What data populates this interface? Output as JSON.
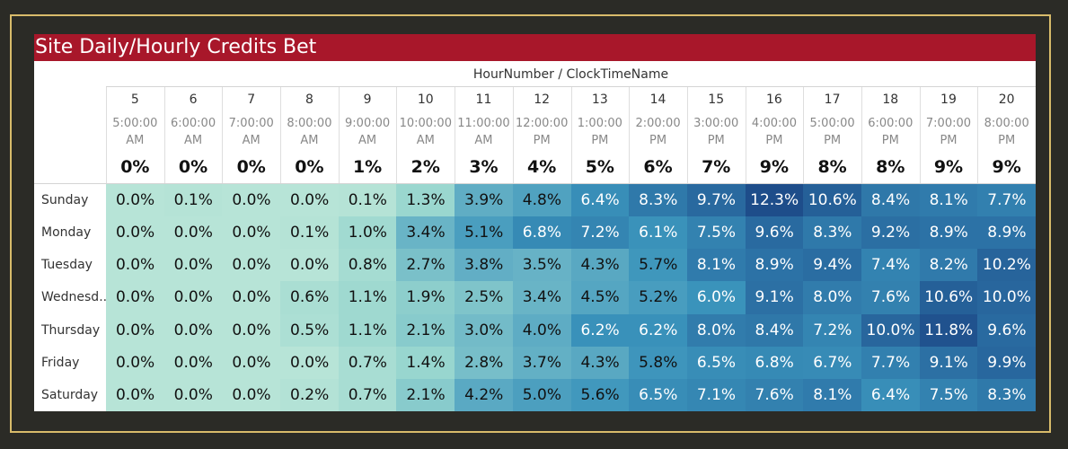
{
  "title": "Site Daily/Hourly Credits Bet",
  "chart_data": {
    "type": "heatmap",
    "title": "Site Daily/Hourly Credits Bet",
    "column_axis_title": "HourNumber / ClockTimeName",
    "hours": [
      "5",
      "6",
      "7",
      "8",
      "9",
      "10",
      "11",
      "12",
      "13",
      "14",
      "15",
      "16",
      "17",
      "18",
      "19",
      "20"
    ],
    "clock_times": [
      [
        "5:00:00",
        "AM"
      ],
      [
        "6:00:00",
        "AM"
      ],
      [
        "7:00:00",
        "AM"
      ],
      [
        "8:00:00",
        "AM"
      ],
      [
        "9:00:00",
        "AM"
      ],
      [
        "10:00:00",
        "AM"
      ],
      [
        "11:00:00",
        "AM"
      ],
      [
        "12:00:00",
        "PM"
      ],
      [
        "1:00:00",
        "PM"
      ],
      [
        "2:00:00",
        "PM"
      ],
      [
        "3:00:00",
        "PM"
      ],
      [
        "4:00:00",
        "PM"
      ],
      [
        "5:00:00",
        "PM"
      ],
      [
        "6:00:00",
        "PM"
      ],
      [
        "7:00:00",
        "PM"
      ],
      [
        "8:00:00",
        "PM"
      ]
    ],
    "column_totals": [
      "0%",
      "0%",
      "0%",
      "0%",
      "1%",
      "2%",
      "3%",
      "4%",
      "5%",
      "6%",
      "7%",
      "9%",
      "8%",
      "8%",
      "9%",
      "9%"
    ],
    "rows": [
      "Sunday",
      "Monday",
      "Tuesday",
      "Wednesd..",
      "Thursday",
      "Friday",
      "Saturday"
    ],
    "values": [
      [
        0.0,
        0.1,
        0.0,
        0.0,
        0.1,
        1.3,
        3.9,
        4.8,
        6.4,
        8.3,
        9.7,
        12.3,
        10.6,
        8.4,
        8.1,
        7.7
      ],
      [
        0.0,
        0.0,
        0.0,
        0.1,
        1.0,
        3.4,
        5.1,
        6.8,
        7.2,
        6.1,
        7.5,
        9.6,
        8.3,
        9.2,
        8.9,
        8.9
      ],
      [
        0.0,
        0.0,
        0.0,
        0.0,
        0.8,
        2.7,
        3.8,
        3.5,
        4.3,
        5.7,
        8.1,
        8.9,
        9.4,
        7.4,
        8.2,
        10.2
      ],
      [
        0.0,
        0.0,
        0.0,
        0.6,
        1.1,
        1.9,
        2.5,
        3.4,
        4.5,
        5.2,
        6.0,
        9.1,
        8.0,
        7.6,
        10.6,
        10.0
      ],
      [
        0.0,
        0.0,
        0.0,
        0.5,
        1.1,
        2.1,
        3.0,
        4.0,
        6.2,
        6.2,
        8.0,
        8.4,
        7.2,
        10.0,
        11.8,
        9.6
      ],
      [
        0.0,
        0.0,
        0.0,
        0.0,
        0.7,
        1.4,
        2.8,
        3.7,
        4.3,
        5.8,
        6.5,
        6.8,
        6.7,
        7.7,
        9.1,
        9.9
      ],
      [
        0.0,
        0.0,
        0.0,
        0.2,
        0.7,
        2.1,
        4.2,
        5.0,
        5.6,
        6.5,
        7.1,
        7.6,
        8.1,
        6.4,
        7.5,
        8.3
      ]
    ],
    "value_format": "percent_1dp",
    "color_scale": [
      "#b7e4d7",
      "#9dd3cf",
      "#6fb4c7",
      "#3a8fb7",
      "#2a6ea6",
      "#1f4f8a"
    ]
  }
}
